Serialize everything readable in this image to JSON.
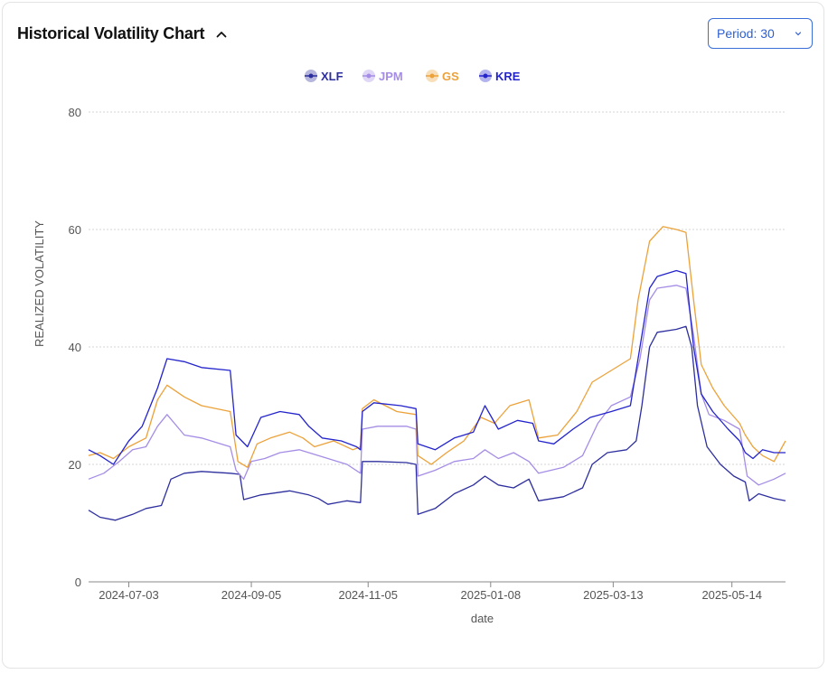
{
  "header": {
    "title": "Historical Volatility Chart"
  },
  "period_select": {
    "label": "Period: 30"
  },
  "colors": {
    "XLF": "#2e2f9e",
    "JPM": "#a58de6",
    "GS": "#eca23a",
    "KRE": "#2424cc"
  },
  "chart_data": {
    "type": "line",
    "xlabel": "date",
    "ylabel": "REALIZED VOLATILITY",
    "ylim": [
      0,
      80
    ],
    "yticks": [
      0,
      20,
      40,
      60,
      80
    ],
    "xlim": [
      "2024-06-12",
      "2025-06-11"
    ],
    "xticks": [
      "2024-07-03",
      "2024-09-05",
      "2024-11-05",
      "2025-01-08",
      "2025-03-13",
      "2025-05-14"
    ],
    "grid": true,
    "legend_position": "top-center",
    "series": [
      {
        "name": "XLF",
        "points": [
          [
            "2024-06-12",
            12.2
          ],
          [
            "2024-06-18",
            11.0
          ],
          [
            "2024-06-26",
            10.5
          ],
          [
            "2024-07-05",
            11.5
          ],
          [
            "2024-07-12",
            12.5
          ],
          [
            "2024-07-20",
            13.0
          ],
          [
            "2024-07-25",
            17.5
          ],
          [
            "2024-08-01",
            18.5
          ],
          [
            "2024-08-10",
            18.8
          ],
          [
            "2024-08-25",
            18.5
          ],
          [
            "2024-08-30",
            18.3
          ],
          [
            "2024-09-01",
            14.0
          ],
          [
            "2024-09-10",
            14.8
          ],
          [
            "2024-09-25",
            15.5
          ],
          [
            "2024-10-05",
            14.8
          ],
          [
            "2024-10-10",
            14.2
          ],
          [
            "2024-10-15",
            13.2
          ],
          [
            "2024-10-25",
            13.8
          ],
          [
            "2024-11-01",
            13.5
          ],
          [
            "2024-11-02",
            20.5
          ],
          [
            "2024-11-10",
            20.5
          ],
          [
            "2024-11-25",
            20.3
          ],
          [
            "2024-11-30",
            20.0
          ],
          [
            "2024-12-01",
            11.5
          ],
          [
            "2024-12-10",
            12.5
          ],
          [
            "2024-12-20",
            15.0
          ],
          [
            "2024-12-30",
            16.5
          ],
          [
            "2025-01-05",
            18.0
          ],
          [
            "2025-01-12",
            16.5
          ],
          [
            "2025-01-20",
            16.0
          ],
          [
            "2025-01-28",
            17.5
          ],
          [
            "2025-02-02",
            13.8
          ],
          [
            "2025-02-15",
            14.5
          ],
          [
            "2025-02-25",
            16.0
          ],
          [
            "2025-03-02",
            20.0
          ],
          [
            "2025-03-10",
            22.0
          ],
          [
            "2025-03-20",
            22.5
          ],
          [
            "2025-03-25",
            24.0
          ],
          [
            "2025-03-28",
            30.0
          ],
          [
            "2025-04-01",
            40.0
          ],
          [
            "2025-04-05",
            42.5
          ],
          [
            "2025-04-15",
            43.0
          ],
          [
            "2025-04-20",
            43.5
          ],
          [
            "2025-04-23",
            40.0
          ],
          [
            "2025-04-26",
            30.0
          ],
          [
            "2025-05-01",
            23.0
          ],
          [
            "2025-05-08",
            20.0
          ],
          [
            "2025-05-15",
            18.0
          ],
          [
            "2025-05-21",
            17.0
          ],
          [
            "2025-05-23",
            13.8
          ],
          [
            "2025-05-28",
            15.0
          ],
          [
            "2025-06-05",
            14.2
          ],
          [
            "2025-06-11",
            13.8
          ]
        ]
      },
      {
        "name": "JPM",
        "points": [
          [
            "2024-06-12",
            17.5
          ],
          [
            "2024-06-20",
            18.5
          ],
          [
            "2024-06-28",
            20.5
          ],
          [
            "2024-07-05",
            22.5
          ],
          [
            "2024-07-12",
            23.0
          ],
          [
            "2024-07-18",
            26.5
          ],
          [
            "2024-07-23",
            28.5
          ],
          [
            "2024-08-01",
            25.0
          ],
          [
            "2024-08-10",
            24.5
          ],
          [
            "2024-08-25",
            23.0
          ],
          [
            "2024-08-28",
            19.0
          ],
          [
            "2024-09-01",
            17.5
          ],
          [
            "2024-09-05",
            20.5
          ],
          [
            "2024-09-12",
            21.0
          ],
          [
            "2024-09-20",
            22.0
          ],
          [
            "2024-09-30",
            22.5
          ],
          [
            "2024-10-05",
            22.0
          ],
          [
            "2024-10-15",
            21.0
          ],
          [
            "2024-10-25",
            20.0
          ],
          [
            "2024-11-01",
            18.5
          ],
          [
            "2024-11-02",
            26.0
          ],
          [
            "2024-11-10",
            26.5
          ],
          [
            "2024-11-25",
            26.5
          ],
          [
            "2024-11-30",
            26.0
          ],
          [
            "2024-12-01",
            18.0
          ],
          [
            "2024-12-10",
            19.0
          ],
          [
            "2024-12-20",
            20.5
          ],
          [
            "2024-12-30",
            21.0
          ],
          [
            "2025-01-05",
            22.5
          ],
          [
            "2025-01-12",
            21.0
          ],
          [
            "2025-01-20",
            22.0
          ],
          [
            "2025-01-28",
            20.5
          ],
          [
            "2025-02-02",
            18.5
          ],
          [
            "2025-02-15",
            19.5
          ],
          [
            "2025-02-25",
            21.5
          ],
          [
            "2025-03-05",
            27.0
          ],
          [
            "2025-03-12",
            30.0
          ],
          [
            "2025-03-22",
            31.5
          ],
          [
            "2025-03-27",
            38.0
          ],
          [
            "2025-04-01",
            48.0
          ],
          [
            "2025-04-05",
            50.0
          ],
          [
            "2025-04-15",
            50.5
          ],
          [
            "2025-04-20",
            50.0
          ],
          [
            "2025-04-24",
            42.0
          ],
          [
            "2025-04-28",
            32.0
          ],
          [
            "2025-05-02",
            28.5
          ],
          [
            "2025-05-10",
            27.5
          ],
          [
            "2025-05-18",
            26.0
          ],
          [
            "2025-05-22",
            18.0
          ],
          [
            "2025-05-28",
            16.5
          ],
          [
            "2025-06-05",
            17.5
          ],
          [
            "2025-06-11",
            18.5
          ]
        ]
      },
      {
        "name": "GS",
        "points": [
          [
            "2024-06-12",
            21.5
          ],
          [
            "2024-06-18",
            22.0
          ],
          [
            "2024-06-25",
            21.0
          ],
          [
            "2024-07-03",
            23.0
          ],
          [
            "2024-07-12",
            24.5
          ],
          [
            "2024-07-18",
            31.0
          ],
          [
            "2024-07-23",
            33.5
          ],
          [
            "2024-08-01",
            31.5
          ],
          [
            "2024-08-10",
            30.0
          ],
          [
            "2024-08-25",
            29.0
          ],
          [
            "2024-08-29",
            20.5
          ],
          [
            "2024-09-03",
            19.5
          ],
          [
            "2024-09-08",
            23.5
          ],
          [
            "2024-09-15",
            24.5
          ],
          [
            "2024-09-25",
            25.5
          ],
          [
            "2024-10-02",
            24.5
          ],
          [
            "2024-10-08",
            23.0
          ],
          [
            "2024-10-18",
            24.0
          ],
          [
            "2024-10-28",
            22.5
          ],
          [
            "2024-11-01",
            23.0
          ],
          [
            "2024-11-02",
            29.5
          ],
          [
            "2024-11-08",
            31.0
          ],
          [
            "2024-11-20",
            29.0
          ],
          [
            "2024-11-30",
            28.5
          ],
          [
            "2024-12-01",
            21.5
          ],
          [
            "2024-12-08",
            20.0
          ],
          [
            "2024-12-16",
            22.0
          ],
          [
            "2024-12-25",
            24.0
          ],
          [
            "2025-01-03",
            28.0
          ],
          [
            "2025-01-10",
            27.0
          ],
          [
            "2025-01-18",
            30.0
          ],
          [
            "2025-01-28",
            31.0
          ],
          [
            "2025-02-02",
            24.5
          ],
          [
            "2025-02-12",
            25.0
          ],
          [
            "2025-02-22",
            29.0
          ],
          [
            "2025-03-02",
            34.0
          ],
          [
            "2025-03-12",
            36.0
          ],
          [
            "2025-03-22",
            38.0
          ],
          [
            "2025-03-26",
            48.0
          ],
          [
            "2025-04-01",
            58.0
          ],
          [
            "2025-04-08",
            60.5
          ],
          [
            "2025-04-15",
            60.0
          ],
          [
            "2025-04-20",
            59.5
          ],
          [
            "2025-04-24",
            48.0
          ],
          [
            "2025-04-28",
            37.0
          ],
          [
            "2025-05-04",
            33.0
          ],
          [
            "2025-05-10",
            30.0
          ],
          [
            "2025-05-18",
            27.0
          ],
          [
            "2025-05-21",
            25.0
          ],
          [
            "2025-05-25",
            23.0
          ],
          [
            "2025-05-30",
            21.5
          ],
          [
            "2025-06-05",
            20.5
          ],
          [
            "2025-06-11",
            24.0
          ]
        ]
      },
      {
        "name": "KRE",
        "points": [
          [
            "2024-06-12",
            22.5
          ],
          [
            "2024-06-18",
            21.5
          ],
          [
            "2024-06-25",
            20.0
          ],
          [
            "2024-07-03",
            24.0
          ],
          [
            "2024-07-10",
            26.5
          ],
          [
            "2024-07-18",
            33.0
          ],
          [
            "2024-07-23",
            38.0
          ],
          [
            "2024-08-01",
            37.5
          ],
          [
            "2024-08-10",
            36.5
          ],
          [
            "2024-08-25",
            36.0
          ],
          [
            "2024-08-28",
            25.0
          ],
          [
            "2024-09-03",
            23.0
          ],
          [
            "2024-09-10",
            28.0
          ],
          [
            "2024-09-20",
            29.0
          ],
          [
            "2024-09-30",
            28.5
          ],
          [
            "2024-10-05",
            26.5
          ],
          [
            "2024-10-12",
            24.5
          ],
          [
            "2024-10-22",
            24.0
          ],
          [
            "2024-10-30",
            23.0
          ],
          [
            "2024-11-01",
            22.5
          ],
          [
            "2024-11-02",
            29.0
          ],
          [
            "2024-11-08",
            30.5
          ],
          [
            "2024-11-22",
            30.0
          ],
          [
            "2024-11-30",
            29.5
          ],
          [
            "2024-12-01",
            23.5
          ],
          [
            "2024-12-10",
            22.5
          ],
          [
            "2024-12-20",
            24.5
          ],
          [
            "2024-12-30",
            25.5
          ],
          [
            "2025-01-05",
            30.0
          ],
          [
            "2025-01-12",
            26.0
          ],
          [
            "2025-01-22",
            27.5
          ],
          [
            "2025-01-30",
            27.0
          ],
          [
            "2025-02-02",
            24.0
          ],
          [
            "2025-02-10",
            23.5
          ],
          [
            "2025-02-20",
            26.0
          ],
          [
            "2025-03-01",
            28.0
          ],
          [
            "2025-03-12",
            29.0
          ],
          [
            "2025-03-22",
            30.0
          ],
          [
            "2025-03-27",
            40.0
          ],
          [
            "2025-04-01",
            50.0
          ],
          [
            "2025-04-05",
            52.0
          ],
          [
            "2025-04-15",
            53.0
          ],
          [
            "2025-04-20",
            52.5
          ],
          [
            "2025-04-24",
            40.0
          ],
          [
            "2025-04-28",
            32.0
          ],
          [
            "2025-05-04",
            29.0
          ],
          [
            "2025-05-12",
            26.0
          ],
          [
            "2025-05-18",
            24.0
          ],
          [
            "2025-05-21",
            22.0
          ],
          [
            "2025-05-25",
            21.0
          ],
          [
            "2025-05-30",
            22.5
          ],
          [
            "2025-06-05",
            22.0
          ],
          [
            "2025-06-11",
            22.0
          ]
        ]
      }
    ]
  }
}
